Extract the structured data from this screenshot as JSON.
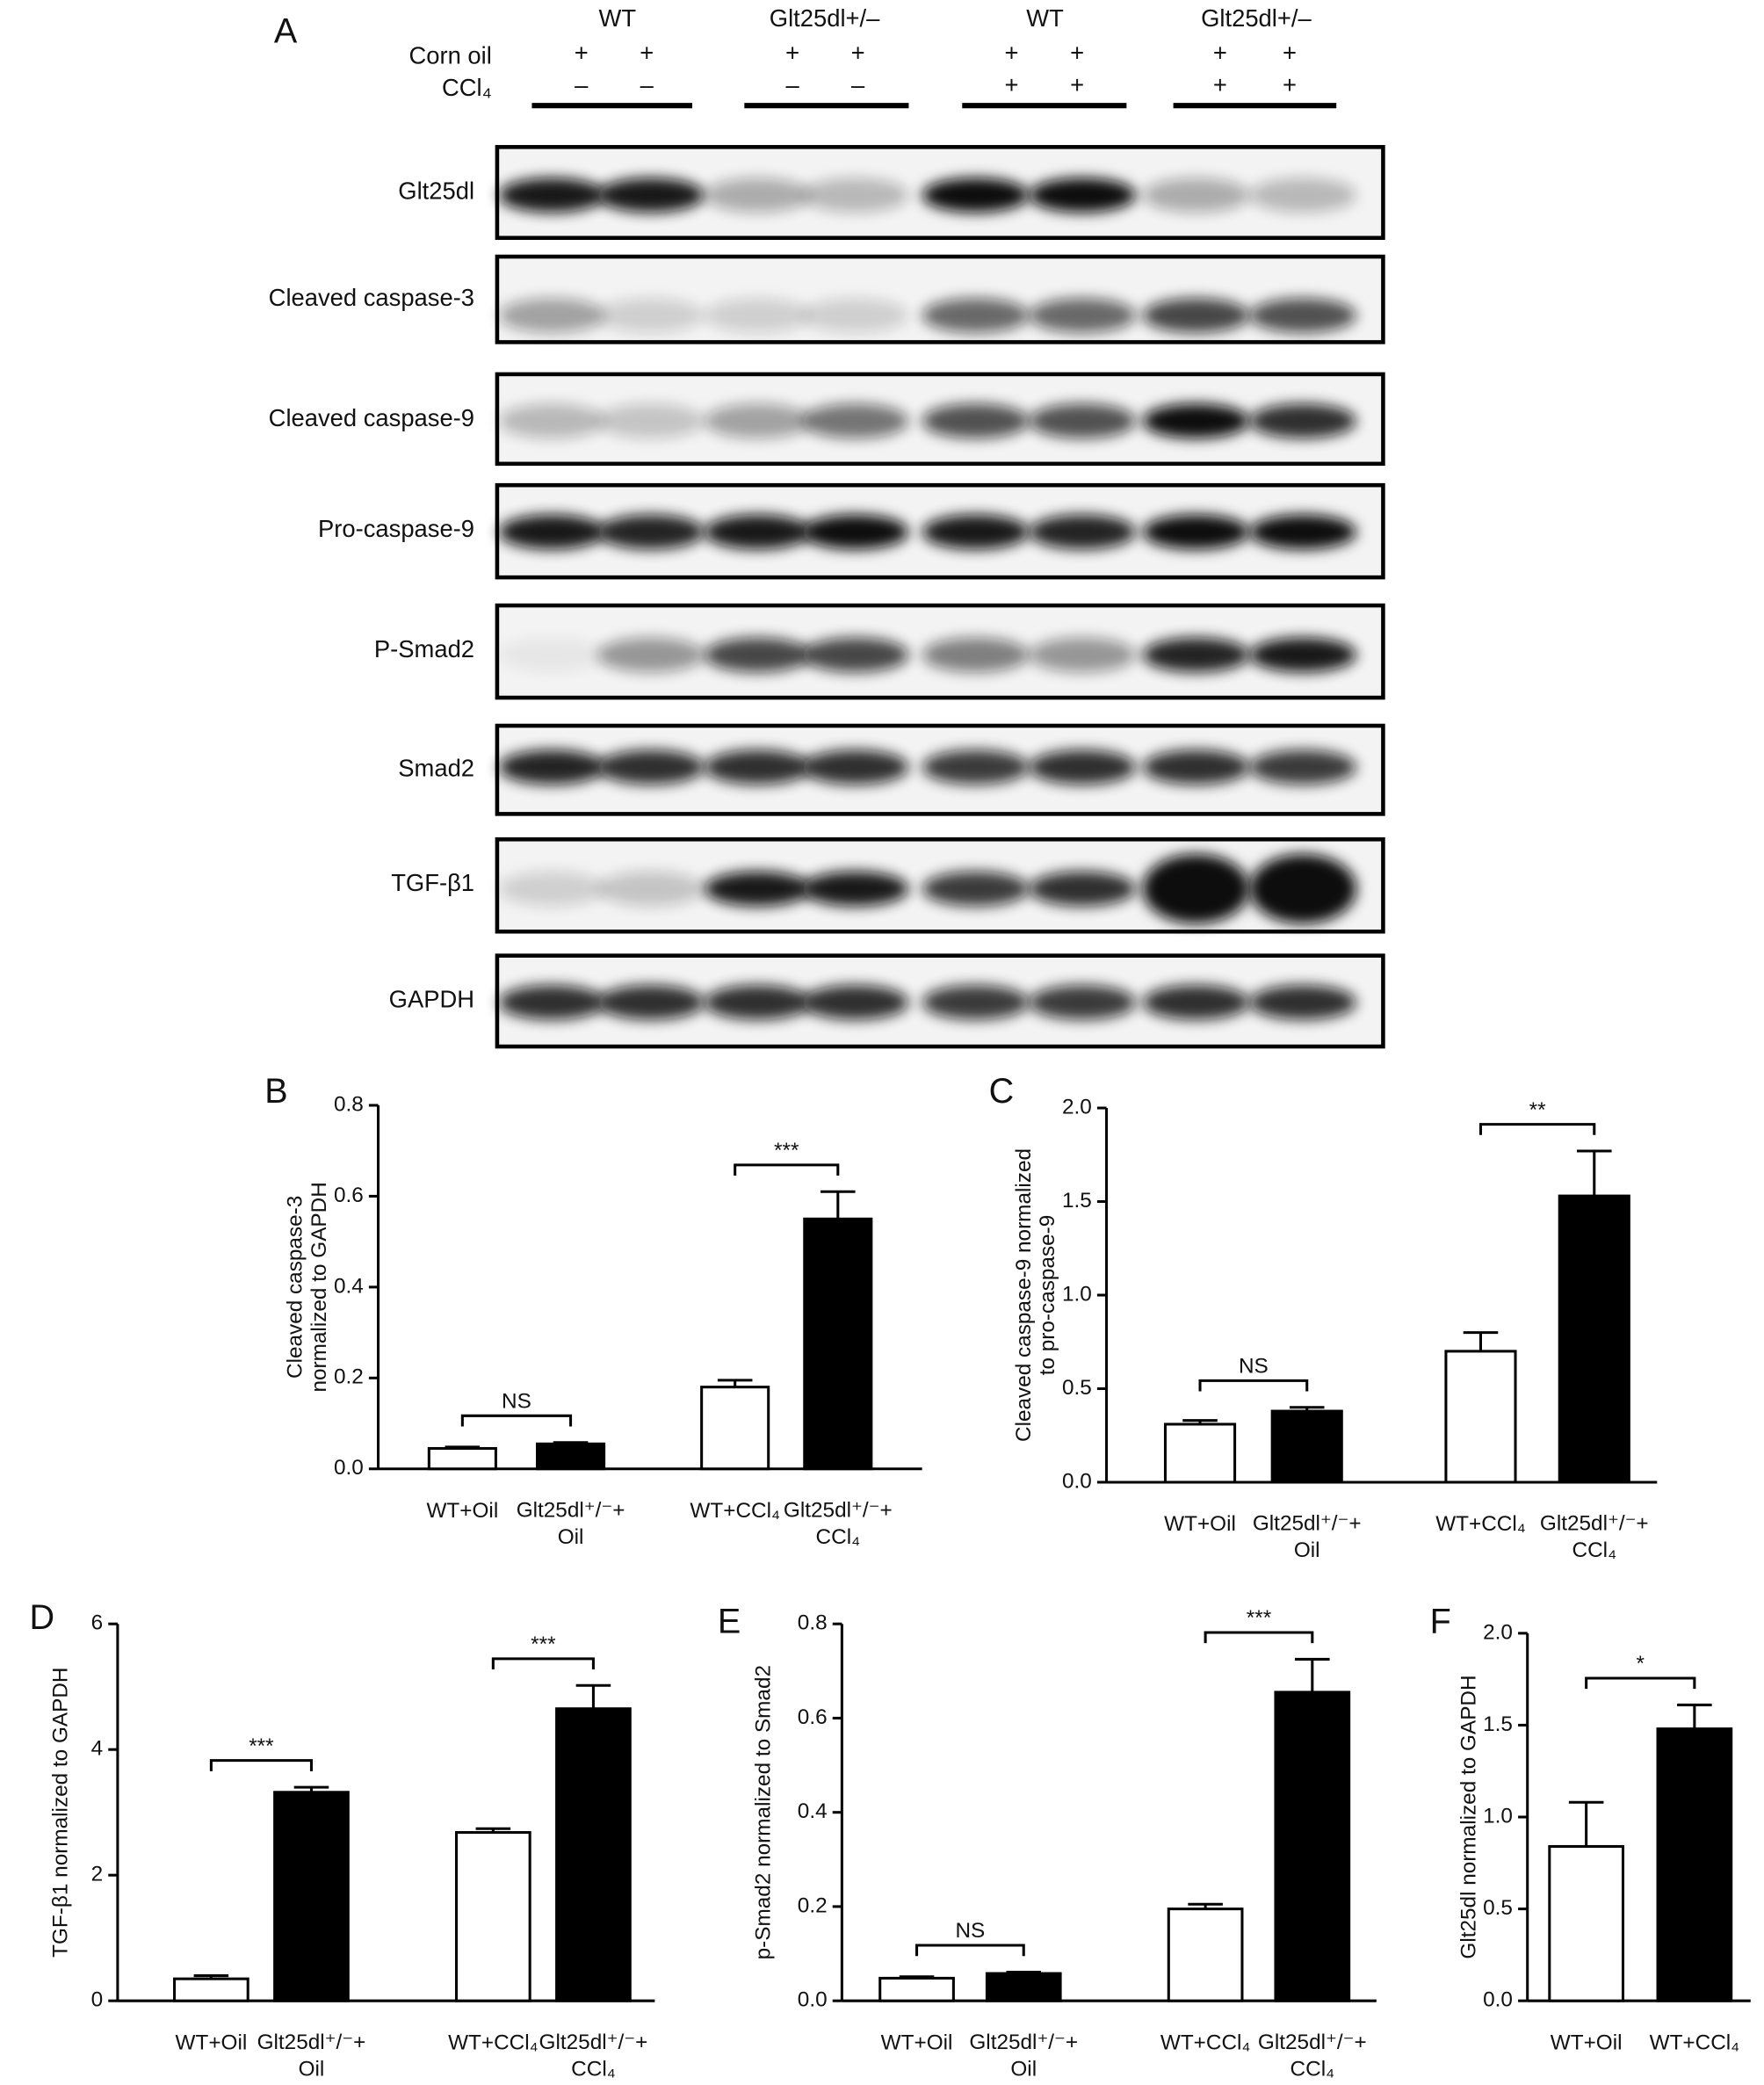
{
  "blot": {
    "panel": "A",
    "groups": [
      "WT",
      "Glt25dl+/–",
      "WT",
      "Glt25dl+/–"
    ],
    "treatments": [
      {
        "name": "Corn oil",
        "marks": [
          "+",
          "+",
          "+",
          "+",
          "+",
          "+",
          "+",
          "+"
        ]
      },
      {
        "name": "CCl₄",
        "marks": [
          "–",
          "–",
          "–",
          "–",
          "+",
          "+",
          "+",
          "+"
        ]
      }
    ],
    "proteins": [
      "Glt25dl",
      "Cleaved caspase-3",
      "Cleaved caspase-9",
      "Pro-caspase-9",
      "P-Smad2",
      "Smad2",
      "TGF-β1",
      "GAPDH"
    ]
  },
  "chart_data": [
    {
      "type": "bar",
      "panel": "B",
      "ylabel": "Cleaved caspase-3\nnormalized  to GAPDH",
      "categories": [
        "WT+Oil",
        "Glt25dl⁺/⁻+\nOil",
        "WT+CCl₄",
        "Glt25dl⁺/⁻+\nCCl₄"
      ],
      "values": [
        0.045,
        0.055,
        0.18,
        0.55
      ],
      "errors": [
        0.003,
        0.003,
        0.015,
        0.06
      ],
      "colors": [
        "#ffffff",
        "#000000",
        "#ffffff",
        "#000000"
      ],
      "ylim": [
        0,
        0.8
      ],
      "yticks": [
        {
          "value": 0,
          "label": "0.0"
        },
        0.2,
        0.4,
        0.6,
        0.8
      ],
      "annotations": [
        "NS",
        "***"
      ]
    },
    {
      "type": "bar",
      "panel": "C",
      "ylabel": "Cleaved caspase-9 normalized\nto pro-caspase-9",
      "categories": [
        "WT+Oil",
        "Glt25dl⁺/⁻+\nOil",
        "WT+CCl₄",
        "Glt25dl⁺/⁻+\nCCl₄"
      ],
      "values": [
        0.31,
        0.38,
        0.7,
        1.53
      ],
      "errors": [
        0.02,
        0.02,
        0.1,
        0.24
      ],
      "colors": [
        "#ffffff",
        "#000000",
        "#ffffff",
        "#000000"
      ],
      "ylim": [
        0,
        2
      ],
      "yticks": [
        {
          "value": 0,
          "label": "0.0"
        },
        0.5,
        {
          "value": 1,
          "label": "1.0"
        },
        1.5,
        {
          "value": 2,
          "label": "2.0"
        }
      ],
      "annotations": [
        "NS",
        "**"
      ]
    },
    {
      "type": "bar",
      "panel": "D",
      "ylabel": "TGF-β1 normalized to GAPDH",
      "categories": [
        "WT+Oil",
        "Glt25dl⁺/⁻+\nOil",
        "WT+CCl₄",
        "Glt25dl⁺/⁻+\nCCl₄"
      ],
      "values": [
        0.35,
        3.32,
        2.68,
        4.65
      ],
      "errors": [
        0.05,
        0.08,
        0.06,
        0.37
      ],
      "colors": [
        "#ffffff",
        "#000000",
        "#ffffff",
        "#000000"
      ],
      "ylim": [
        0,
        6
      ],
      "yticks": [
        0,
        2,
        4,
        6
      ],
      "annotations": [
        "***",
        "***"
      ]
    },
    {
      "type": "bar",
      "panel": "E",
      "ylabel": "p-Smad2 normalized to Smad2",
      "categories": [
        "WT+Oil",
        "Glt25dl⁺/⁻+\nOil",
        "WT+CCl₄",
        "Glt25dl⁺/⁻+\nCCl₄"
      ],
      "values": [
        0.048,
        0.058,
        0.195,
        0.655
      ],
      "errors": [
        0.003,
        0.003,
        0.01,
        0.07
      ],
      "colors": [
        "#ffffff",
        "#000000",
        "#ffffff",
        "#000000"
      ],
      "ylim": [
        0,
        0.8
      ],
      "yticks": [
        {
          "value": 0,
          "label": "0.0"
        },
        0.2,
        0.4,
        0.6,
        0.8
      ],
      "annotations": [
        "NS",
        "***"
      ]
    },
    {
      "type": "bar",
      "panel": "F",
      "ylabel": "Glt25dl normalized to GAPDH",
      "categories": [
        "WT+Oil",
        "WT+CCl₄"
      ],
      "values": [
        0.84,
        1.48
      ],
      "errors": [
        0.24,
        0.13
      ],
      "colors": [
        "#ffffff",
        "#000000"
      ],
      "ylim": [
        0,
        2
      ],
      "yticks": [
        {
          "value": 0,
          "label": "0.0"
        },
        0.5,
        {
          "value": 1,
          "label": "1.0"
        },
        1.5,
        {
          "value": 2,
          "label": "2.0"
        }
      ],
      "annotations": [
        "*"
      ]
    }
  ]
}
